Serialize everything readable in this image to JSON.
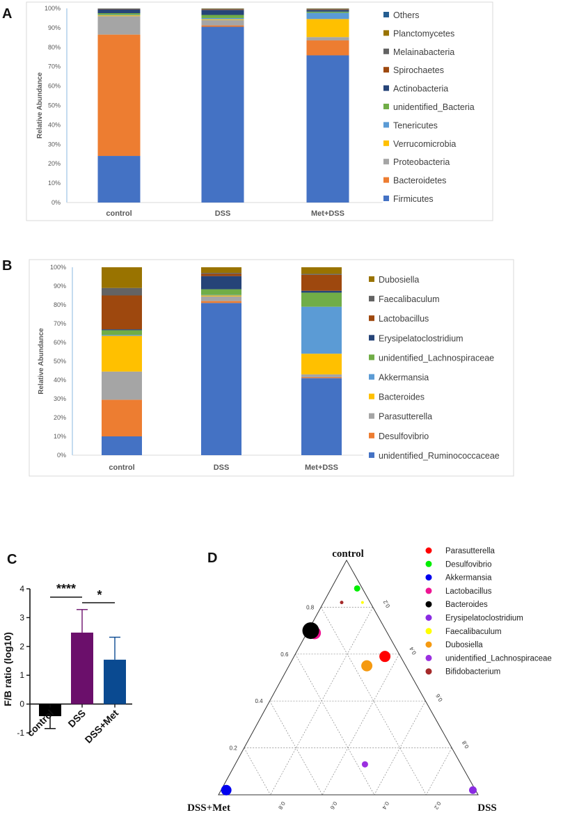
{
  "panels": {
    "a": "A",
    "b": "B",
    "c": "C",
    "d": "D"
  },
  "chart_data": [
    {
      "id": "A",
      "type": "bar",
      "stacked": true,
      "ylabel": "Relative Abundance",
      "yticks": [
        "0%",
        "10%",
        "20%",
        "30%",
        "40%",
        "50%",
        "60%",
        "70%",
        "80%",
        "90%",
        "100%"
      ],
      "ylim": [
        0,
        100
      ],
      "categories": [
        "control",
        "DSS",
        "Met+DSS"
      ],
      "legend_position": "right",
      "series": [
        {
          "name": "Firmicutes",
          "color": "#4472C4",
          "values": [
            24,
            90.5,
            75.8
          ]
        },
        {
          "name": "Bacteroidetes",
          "color": "#ED7D31",
          "values": [
            62.5,
            0.7,
            7.7
          ]
        },
        {
          "name": "Proteobacteria",
          "color": "#A5A5A5",
          "values": [
            9.5,
            2.8,
            1.7
          ]
        },
        {
          "name": "Verrucomicrobia",
          "color": "#FFC000",
          "values": [
            0.4,
            0.4,
            9.3
          ]
        },
        {
          "name": "Tenericutes",
          "color": "#5B9BD5",
          "values": [
            0.3,
            0.6,
            3.2
          ]
        },
        {
          "name": "unidentified_Bacteria",
          "color": "#70AD47",
          "values": [
            0.8,
            1.6,
            0.6
          ]
        },
        {
          "name": "Actinobacteria",
          "color": "#264478",
          "values": [
            2.0,
            2.6,
            0.9
          ]
        },
        {
          "name": "Spirochaetes",
          "color": "#9E480E",
          "values": [
            0.2,
            0.3,
            0.3
          ]
        },
        {
          "name": "Melainabacteria",
          "color": "#636363",
          "values": [
            0.1,
            0.2,
            0.2
          ]
        },
        {
          "name": "Planctomycetes",
          "color": "#997300",
          "values": [
            0.1,
            0.2,
            0.2
          ]
        },
        {
          "name": "Others",
          "color": "#255E91",
          "values": [
            0.1,
            0.1,
            0.1
          ]
        }
      ]
    },
    {
      "id": "B",
      "type": "bar",
      "stacked": true,
      "ylabel": "Relative Abundance",
      "yticks": [
        "0%",
        "10%",
        "20%",
        "30%",
        "40%",
        "50%",
        "60%",
        "70%",
        "80%",
        "90%",
        "100%"
      ],
      "ylim": [
        0,
        100
      ],
      "categories": [
        "control",
        "DSS",
        "Met+DSS"
      ],
      "legend_position": "right",
      "series": [
        {
          "name": "unidentified_Ruminococcaceae",
          "color": "#4472C4",
          "values": [
            10,
            81,
            41
          ]
        },
        {
          "name": "Desulfovibrio",
          "color": "#ED7D31",
          "values": [
            19.5,
            1,
            0.5
          ]
        },
        {
          "name": "Parasutterella",
          "color": "#A5A5A5",
          "values": [
            15,
            2.5,
            1.5
          ]
        },
        {
          "name": "Bacteroides",
          "color": "#FFC000",
          "values": [
            19,
            0.5,
            11
          ]
        },
        {
          "name": "Akkermansia",
          "color": "#5B9BD5",
          "values": [
            0.5,
            0.3,
            25
          ]
        },
        {
          "name": "unidentified_Lachnospiraceae",
          "color": "#70AD47",
          "values": [
            2.5,
            3,
            7.5
          ]
        },
        {
          "name": "Erysipelatoclostridium",
          "color": "#264478",
          "values": [
            0.5,
            7,
            1
          ]
        },
        {
          "name": "Lactobacillus",
          "color": "#9E480E",
          "values": [
            18,
            1.2,
            8.5
          ]
        },
        {
          "name": "Faecalibaculum",
          "color": "#636363",
          "values": [
            4,
            0.5,
            0.5
          ]
        },
        {
          "name": "Dubosiella",
          "color": "#997300",
          "values": [
            11,
            3,
            3.5
          ]
        }
      ]
    },
    {
      "id": "C",
      "type": "bar",
      "ylabel": "F/B ratio (log10)",
      "yticks": [
        "-1",
        "0",
        "1",
        "2",
        "3",
        "4"
      ],
      "ylim": [
        -1,
        4
      ],
      "categories": [
        "control",
        "DSS",
        "DSS+Met"
      ],
      "values": [
        -0.42,
        2.48,
        1.54
      ],
      "errors": [
        0.43,
        0.8,
        0.78
      ],
      "colors": [
        "#000000",
        "#6B0F6B",
        "#0A4A91"
      ],
      "significance": [
        {
          "from": "control",
          "to": "DSS",
          "label": "****"
        },
        {
          "from": "DSS",
          "to": "DSS+Met",
          "label": "*"
        }
      ]
    },
    {
      "id": "D",
      "type": "scatter",
      "subtype": "ternary",
      "vertices": {
        "top": "control",
        "left": "DSS+Met",
        "right": "DSS"
      },
      "axis_ticks": [
        "0.2",
        "0.4",
        "0.6",
        "0.8"
      ],
      "legend_position": "top-right",
      "points": [
        {
          "name": "Parasutterella",
          "color": "#FF0000",
          "control": 0.59,
          "dss": 0.35,
          "met": 0.06,
          "size": 8
        },
        {
          "name": "Desulfovibrio",
          "color": "#00EE00",
          "control": 0.88,
          "dss": 0.1,
          "met": 0.02,
          "size": 4.5
        },
        {
          "name": "Akkermansia",
          "color": "#0000EE",
          "control": 0.02,
          "dss": 0.02,
          "met": 0.96,
          "size": 7.5
        },
        {
          "name": "Lactobacillus",
          "color": "#EE1493",
          "control": 0.69,
          "dss": 0.03,
          "met": 0.28,
          "size": 9
        },
        {
          "name": "Bacteroides",
          "color": "#000000",
          "control": 0.7,
          "dss": 0.01,
          "met": 0.29,
          "size": 12
        },
        {
          "name": "Erysipelatoclostridium",
          "color": "#8A2BE2",
          "control": 0.02,
          "dss": 0.97,
          "met": 0.01,
          "size": 5.5
        },
        {
          "name": "Faecalibaculum",
          "color": "#FFFF00",
          "control": 0.82,
          "dss": 0.15,
          "met": 0.03,
          "size": 2
        },
        {
          "name": "Dubosiella",
          "color": "#F59A11",
          "control": 0.55,
          "dss": 0.3,
          "met": 0.15,
          "size": 8
        },
        {
          "name": "unidentified_Lachnospiraceae",
          "color": "#9B30E0",
          "control": 0.13,
          "dss": 0.5,
          "met": 0.37,
          "size": 4.5
        },
        {
          "name": "Bifidobacterium",
          "color": "#A52A2A",
          "control": 0.82,
          "dss": 0.07,
          "met": 0.11,
          "size": 2.5
        }
      ]
    }
  ]
}
